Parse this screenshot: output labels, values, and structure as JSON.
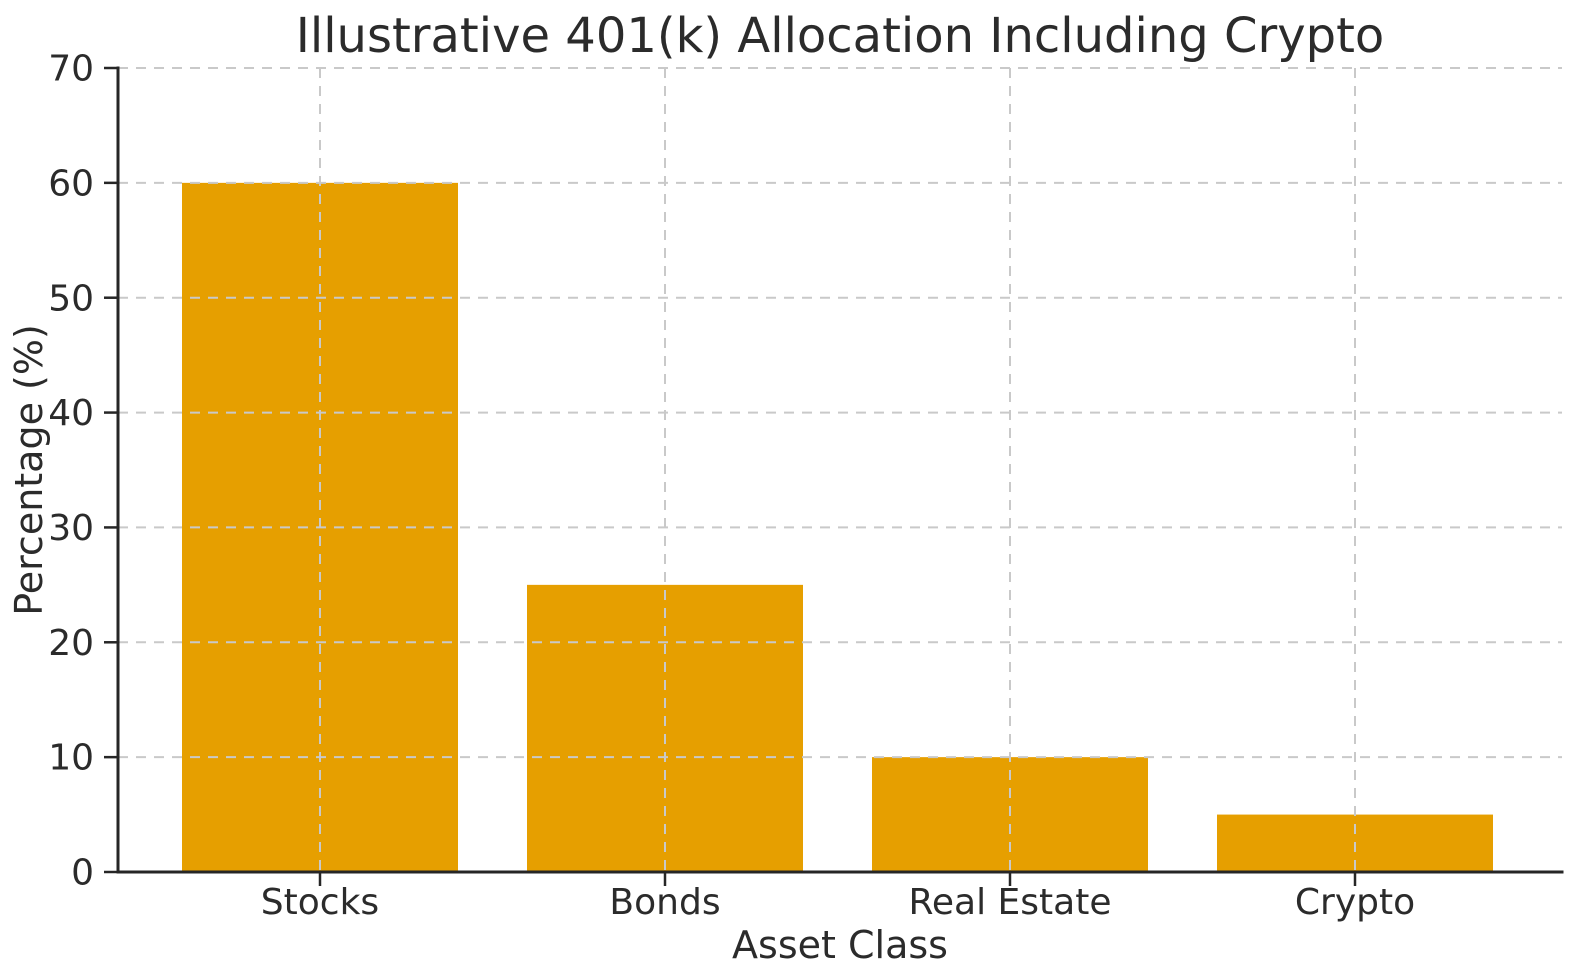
{
  "chart_data": {
    "type": "bar",
    "title": "Illustrative 401(k) Allocation Including Crypto",
    "xlabel": "Asset Class",
    "ylabel": "Percentage (%)",
    "categories": [
      "Stocks",
      "Bonds",
      "Real Estate",
      "Crypto"
    ],
    "values": [
      60,
      25,
      10,
      5
    ],
    "ylim": [
      0,
      70
    ],
    "yticks": [
      0,
      10,
      20,
      30,
      40,
      50,
      60,
      70
    ],
    "bar_color": "#E69F00",
    "grid": {
      "style": "dashed",
      "axes": "both",
      "color": "#c9c9c9",
      "drawn_above_bars": true
    },
    "legend_position": "none",
    "background_color": "#ffffff",
    "text_color": "#2b2b2b",
    "spine_color": "#262626"
  }
}
